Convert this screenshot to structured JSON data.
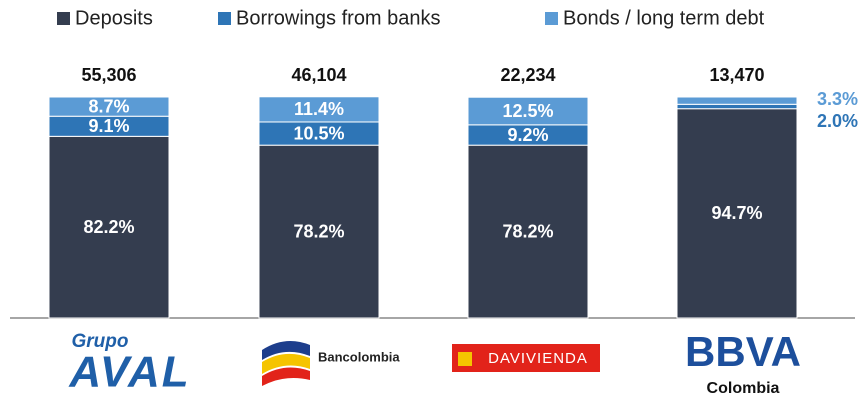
{
  "chart_data": {
    "type": "bar",
    "stacked": true,
    "categories": [
      "AVAL",
      "Bancolombia",
      "DAVIVIENDA",
      "BBVA"
    ],
    "category_notes": [
      "Grupo",
      null,
      null,
      "Colombia"
    ],
    "series": [
      {
        "name": "Deposits",
        "color": "#343d4f",
        "values": [
          82.2,
          78.2,
          78.2,
          94.7
        ],
        "value_labels": [
          "82.2%",
          "78.2%",
          "78.2%",
          "94.7%"
        ]
      },
      {
        "name": "Borrowings from banks",
        "color": "#2e75b6",
        "values": [
          9.1,
          10.5,
          9.2,
          2.0
        ],
        "value_labels": [
          "9.1%",
          "10.5%",
          "9.2%",
          "2.0%"
        ]
      },
      {
        "name": "Bonds / long term debt",
        "color": "#5b9bd5",
        "values": [
          8.7,
          11.4,
          12.5,
          3.3
        ],
        "value_labels": [
          "8.7%",
          "11.4%",
          "12.5%",
          "3.3%"
        ]
      }
    ],
    "totals": {
      "values": [
        55306,
        46104,
        22234,
        13470
      ],
      "value_labels": [
        "55,306",
        "46,104",
        "22,234",
        "13,470"
      ]
    },
    "ylim": [
      0,
      100
    ],
    "legend": "top"
  }
}
